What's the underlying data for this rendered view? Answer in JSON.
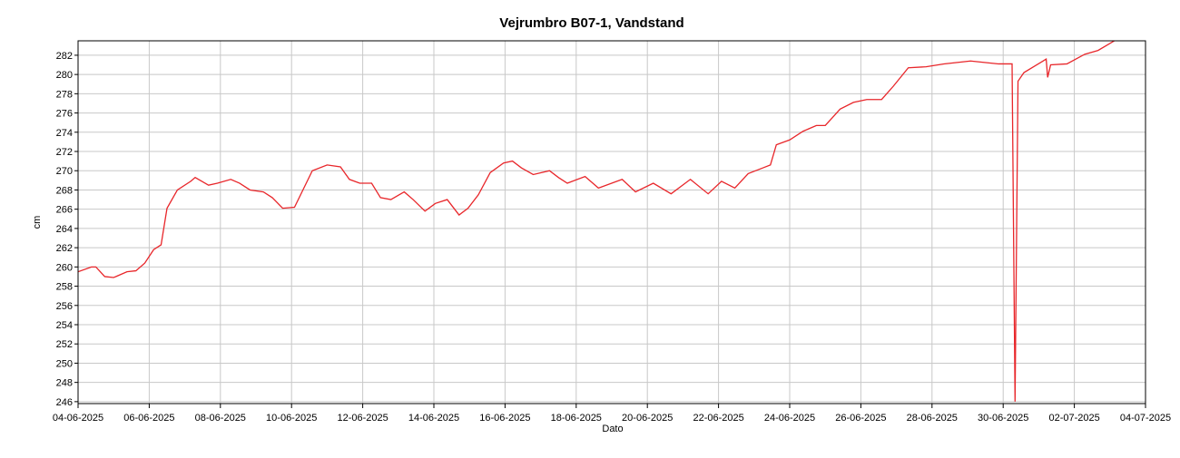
{
  "chart_data": {
    "type": "line",
    "title": "Vejrumbro B07-1, Vandstand",
    "x_label": "Dato",
    "y_label": "cm",
    "x": [
      "2025-06-04T00:00",
      "2025-06-04T09:00",
      "2025-06-04T12:00",
      "2025-06-04T18:00",
      "2025-06-05T00:00",
      "2025-06-05T09:00",
      "2025-06-05T15:00",
      "2025-06-05T21:00",
      "2025-06-06T03:00",
      "2025-06-06T08:00",
      "2025-06-06T12:00",
      "2025-06-06T19:00",
      "2025-06-07T04:00",
      "2025-06-07T07:00",
      "2025-06-07T16:00",
      "2025-06-07T22:00",
      "2025-06-08T07:00",
      "2025-06-08T13:00",
      "2025-06-08T20:00",
      "2025-06-09T05:00",
      "2025-06-09T11:00",
      "2025-06-09T18:00",
      "2025-06-10T02:00",
      "2025-06-10T08:00",
      "2025-06-10T14:00",
      "2025-06-11T00:00",
      "2025-06-11T09:00",
      "2025-06-11T15:00",
      "2025-06-11T22:00",
      "2025-06-12T06:00",
      "2025-06-12T12:00",
      "2025-06-12T19:00",
      "2025-06-13T04:00",
      "2025-06-13T10:00",
      "2025-06-13T18:00",
      "2025-06-14T01:00",
      "2025-06-14T09:00",
      "2025-06-14T17:00",
      "2025-06-14T23:00",
      "2025-06-15T06:00",
      "2025-06-15T14:00",
      "2025-06-15T23:00",
      "2025-06-16T05:00",
      "2025-06-16T11:00",
      "2025-06-16T19:00",
      "2025-06-17T06:00",
      "2025-06-17T12:00",
      "2025-06-17T18:00",
      "2025-06-18T06:00",
      "2025-06-18T15:00",
      "2025-06-19T07:00",
      "2025-06-19T16:00",
      "2025-06-20T04:00",
      "2025-06-20T16:00",
      "2025-06-21T05:00",
      "2025-06-21T17:00",
      "2025-06-22T02:00",
      "2025-06-22T11:00",
      "2025-06-22T20:00",
      "2025-06-23T06:00",
      "2025-06-23T11:00",
      "2025-06-23T15:00",
      "2025-06-24T00:00",
      "2025-06-24T09:00",
      "2025-06-24T18:00",
      "2025-06-25T00:00",
      "2025-06-25T10:00",
      "2025-06-25T19:00",
      "2025-06-26T04:00",
      "2025-06-26T14:00",
      "2025-06-26T22:00",
      "2025-06-27T08:00",
      "2025-06-27T20:00",
      "2025-06-28T08:00",
      "2025-06-29T02:00",
      "2025-06-29T21:00",
      "2025-06-30T06:00",
      "2025-06-30T08:00",
      "2025-06-30T10:00",
      "2025-06-30T14:00",
      "2025-07-01T05:00",
      "2025-07-01T06:00",
      "2025-07-01T08:00",
      "2025-07-01T19:00",
      "2025-07-02T07:00",
      "2025-07-02T16:00",
      "2025-07-03T03:00"
    ],
    "series": [
      {
        "name": "Vandstand",
        "color": "#e8262a",
        "values": [
          259.5,
          260.0,
          260.0,
          259.0,
          258.9,
          259.5,
          259.6,
          260.4,
          261.8,
          262.3,
          266.1,
          268.0,
          268.9,
          269.3,
          268.5,
          268.7,
          269.1,
          268.7,
          268.0,
          267.8,
          267.2,
          266.1,
          266.2,
          268.1,
          270.0,
          270.6,
          270.4,
          269.1,
          268.7,
          268.7,
          267.2,
          267.0,
          267.8,
          267.0,
          265.8,
          266.6,
          267.0,
          265.4,
          266.1,
          267.5,
          269.8,
          270.8,
          271.0,
          270.3,
          269.6,
          270.0,
          269.3,
          268.7,
          269.4,
          268.2,
          269.1,
          267.8,
          268.7,
          267.6,
          269.1,
          267.6,
          268.9,
          268.2,
          269.7,
          270.3,
          270.6,
          272.7,
          273.2,
          274.1,
          274.7,
          274.7,
          276.4,
          277.1,
          277.4,
          277.4,
          278.8,
          280.7,
          280.8,
          281.1,
          281.4,
          281.1,
          281.1,
          246,
          279.3,
          280.2,
          281.6,
          279.7,
          281.0,
          281.1,
          282.1,
          282.5,
          283.5
        ]
      }
    ],
    "xlim": [
      "2025-06-04T00:00",
      "2025-07-04T00:00"
    ],
    "xticks": [
      {
        "value": "2025-06-04T00:00",
        "label": "04-06-2025"
      },
      {
        "value": "2025-06-06T00:00",
        "label": "06-06-2025"
      },
      {
        "value": "2025-06-08T00:00",
        "label": "08-06-2025"
      },
      {
        "value": "2025-06-10T00:00",
        "label": "10-06-2025"
      },
      {
        "value": "2025-06-12T00:00",
        "label": "12-06-2025"
      },
      {
        "value": "2025-06-14T00:00",
        "label": "14-06-2025"
      },
      {
        "value": "2025-06-16T00:00",
        "label": "16-06-2025"
      },
      {
        "value": "2025-06-18T00:00",
        "label": "18-06-2025"
      },
      {
        "value": "2025-06-20T00:00",
        "label": "20-06-2025"
      },
      {
        "value": "2025-06-22T00:00",
        "label": "22-06-2025"
      },
      {
        "value": "2025-06-24T00:00",
        "label": "24-06-2025"
      },
      {
        "value": "2025-06-26T00:00",
        "label": "26-06-2025"
      },
      {
        "value": "2025-06-28T00:00",
        "label": "28-06-2025"
      },
      {
        "value": "2025-06-30T00:00",
        "label": "30-06-2025"
      },
      {
        "value": "2025-07-02T00:00",
        "label": "02-07-2025"
      },
      {
        "value": "2025-07-04T00:00",
        "label": "04-07-2025"
      }
    ],
    "ylim": [
      245.8,
      283.5
    ],
    "yticks": [
      246,
      248,
      250,
      252,
      254,
      256,
      258,
      260,
      262,
      264,
      266,
      268,
      270,
      272,
      274,
      276,
      278,
      280,
      282
    ],
    "grid": true
  }
}
